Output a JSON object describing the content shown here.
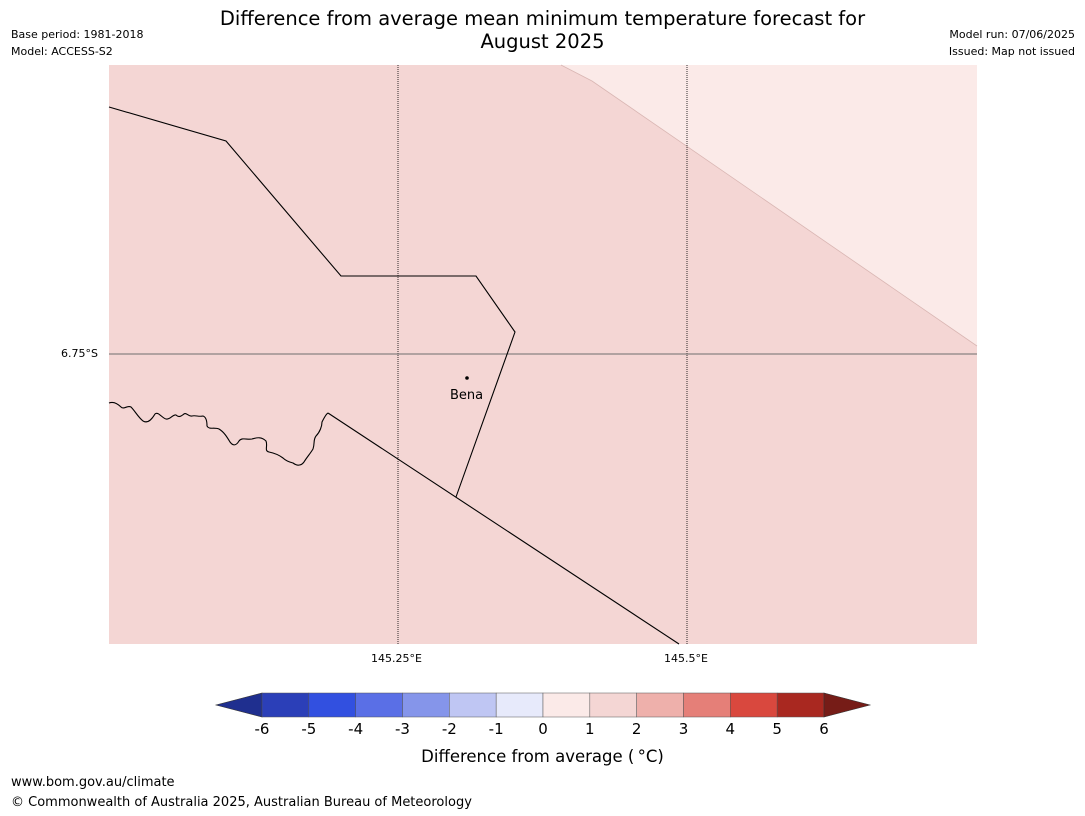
{
  "header": {
    "title_line1": "Difference from average mean minimum temperature forecast for",
    "title_line2": "August 2025",
    "base_period": "Base period: 1981-2018",
    "model": "Model: ACCESS-S2",
    "model_run": "Model run: 07/06/2025",
    "issued": "Issued: Map not issued"
  },
  "map": {
    "latitude_label": "6.75°S",
    "longitude_labels": [
      "145.25°E",
      "145.5°E"
    ],
    "place": {
      "name": "Bena"
    },
    "fill_colors": {
      "main": "#f4d6d4",
      "lighter_band": "#fbeae8"
    }
  },
  "colorbar": {
    "label": "Difference from average ( °C)",
    "ticks": [
      "-6",
      "-5",
      "-4",
      "-3",
      "-2",
      "-1",
      "0",
      "1",
      "2",
      "3",
      "4",
      "5",
      "6"
    ],
    "colors": [
      "#1f2f8f",
      "#2b3fb8",
      "#3250e0",
      "#5a6fe6",
      "#8595ea",
      "#bfc6f3",
      "#e7eafb",
      "#fbeae8",
      "#f4d6d4",
      "#eeb0ab",
      "#e57f78",
      "#d9483e",
      "#a92820",
      "#761c17"
    ]
  },
  "footer": {
    "url": "www.bom.gov.au/climate",
    "copyright": "© Commonwealth of Australia 2025, Australian Bureau of Meteorology"
  }
}
